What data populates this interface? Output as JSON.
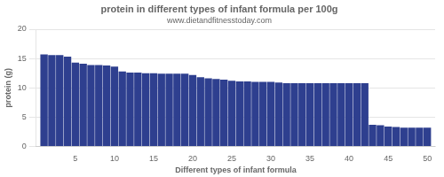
{
  "chart_data": {
    "type": "bar",
    "title": "protein in different types of infant formula per 100g",
    "subtitle": "www.dietandfitnesstoday.com",
    "xlabel": "Different types of infant formula",
    "ylabel": "protein (g)",
    "x": [
      1,
      2,
      3,
      4,
      5,
      6,
      7,
      8,
      9,
      10,
      11,
      12,
      13,
      14,
      15,
      16,
      17,
      18,
      19,
      20,
      21,
      22,
      23,
      24,
      25,
      26,
      27,
      28,
      29,
      30,
      31,
      32,
      33,
      34,
      35,
      36,
      37,
      38,
      39,
      40,
      41,
      42,
      43,
      44,
      45,
      46,
      47,
      48,
      49,
      50
    ],
    "values": [
      15.7,
      15.6,
      15.6,
      15.3,
      14.3,
      14.1,
      13.9,
      13.9,
      13.8,
      13.6,
      12.8,
      12.6,
      12.6,
      12.5,
      12.5,
      12.4,
      12.4,
      12.4,
      12.4,
      12.2,
      11.8,
      11.6,
      11.5,
      11.4,
      11.2,
      11.1,
      11.1,
      11.0,
      11.0,
      11.0,
      10.9,
      10.8,
      10.8,
      10.8,
      10.8,
      10.8,
      10.8,
      10.8,
      10.8,
      10.8,
      10.8,
      10.8,
      3.7,
      3.6,
      3.4,
      3.3,
      3.2,
      3.2,
      3.2,
      3.2
    ],
    "color": "#2e3f8f",
    "xlim": [
      0,
      51
    ],
    "xticks": [
      5,
      10,
      15,
      20,
      25,
      30,
      35,
      40,
      45,
      50
    ],
    "ylim": [
      0,
      20
    ],
    "yticks": [
      0,
      5,
      10,
      15,
      20
    ],
    "grid": true
  }
}
